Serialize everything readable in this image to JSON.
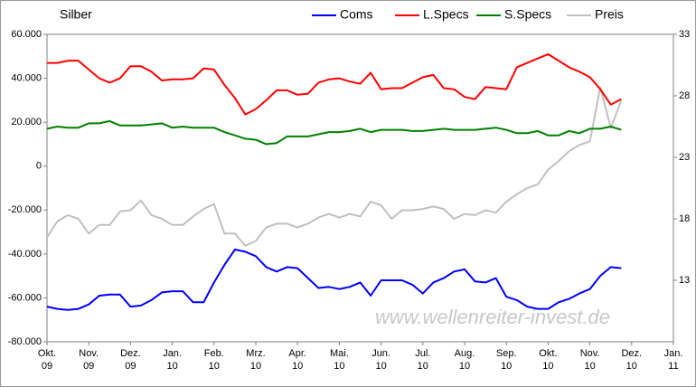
{
  "chart_data": {
    "type": "line",
    "title": "Silber",
    "annotation": "www.wellenreiter-invest.de",
    "x": [
      0,
      0.25,
      0.5,
      0.75,
      1,
      1.25,
      1.5,
      1.75,
      2,
      2.25,
      2.5,
      2.75,
      3,
      3.25,
      3.5,
      3.75,
      4,
      4.25,
      4.5,
      4.75,
      5,
      5.25,
      5.5,
      5.75,
      6,
      6.25,
      6.5,
      6.75,
      7,
      7.25,
      7.5,
      7.75,
      8,
      8.25,
      8.5,
      8.75,
      9,
      9.25,
      9.5,
      9.75,
      10,
      10.25,
      10.5,
      10.75,
      11,
      11.25,
      11.5,
      11.75,
      12,
      12.25,
      12.5,
      12.75,
      13,
      13.25,
      13.5,
      13.75
    ],
    "xlim": [
      0,
      15
    ],
    "xticks": [
      {
        "value": 0,
        "label": "Okt.\n09"
      },
      {
        "value": 1,
        "label": "Nov.\n09"
      },
      {
        "value": 2,
        "label": "Dez.\n09"
      },
      {
        "value": 3,
        "label": "Jan.\n10"
      },
      {
        "value": 4,
        "label": "Feb.\n10"
      },
      {
        "value": 5,
        "label": "Mrz.\n10"
      },
      {
        "value": 6,
        "label": "Apr.\n10"
      },
      {
        "value": 7,
        "label": "Mai.\n10"
      },
      {
        "value": 8,
        "label": "Jun.\n10"
      },
      {
        "value": 9,
        "label": "Jul.\n10"
      },
      {
        "value": 10,
        "label": "Aug.\n10"
      },
      {
        "value": 11,
        "label": "Sep.\n10"
      },
      {
        "value": 12,
        "label": "Okt.\n10"
      },
      {
        "value": 13,
        "label": "Nov.\n10"
      },
      {
        "value": 14,
        "label": "Dez.\n10"
      },
      {
        "value": 15,
        "label": "Jan.\n11"
      }
    ],
    "ylim": [
      -80000,
      60000
    ],
    "yticks": [
      {
        "value": -80000,
        "label": "-80.000"
      },
      {
        "value": -60000,
        "label": "-60.000"
      },
      {
        "value": -40000,
        "label": "-40.000"
      },
      {
        "value": -20000,
        "label": "-20.000"
      },
      0,
      {
        "value": 20000,
        "label": "20.000"
      },
      {
        "value": 40000,
        "label": "40.000"
      },
      {
        "value": 60000,
        "label": "60.000"
      }
    ],
    "y2lim": [
      8,
      33
    ],
    "y2ticks": [
      13,
      18,
      23,
      28,
      33
    ],
    "grid": false,
    "legend": "top",
    "series": [
      {
        "name": "Coms",
        "color": "#0000ff",
        "values": [
          -64000,
          -65000,
          -65500,
          -65000,
          -63000,
          -59000,
          -58500,
          -58500,
          -64000,
          -63500,
          -61000,
          -57500,
          -57000,
          -57000,
          -62000,
          -62000,
          -53000,
          -45000,
          -38000,
          -39000,
          -41000,
          -46000,
          -48000,
          -46000,
          -46500,
          -51000,
          -55500,
          -55000,
          -56000,
          -55000,
          -53000,
          -59000,
          -52000,
          -52000,
          -52000,
          -54000,
          -58000,
          -53000,
          -51000,
          -48000,
          -47000,
          -52500,
          -53000,
          -51000,
          -59500,
          -61000,
          -64000,
          -65000,
          -65000,
          -62000,
          -60500,
          -58000,
          -56000,
          -50000,
          -46000,
          -46500
        ]
      },
      {
        "name": "L.Specs",
        "color": "#ff0000",
        "values": [
          47000,
          47000,
          48000,
          48000,
          44000,
          40000,
          38000,
          40000,
          45500,
          45500,
          43000,
          39000,
          39500,
          39500,
          40000,
          44500,
          44000,
          37000,
          31000,
          23500,
          26000,
          30000,
          34500,
          34500,
          32500,
          33000,
          38000,
          39500,
          40000,
          38500,
          37500,
          42500,
          35000,
          35500,
          35500,
          38000,
          40500,
          41500,
          35500,
          35000,
          31500,
          30500,
          36000,
          35500,
          35000,
          45000,
          47000,
          49000,
          51000,
          48000,
          45000,
          43000,
          40500,
          35000,
          28000,
          30500
        ]
      },
      {
        "name": "S.Specs",
        "color": "#008000",
        "values": [
          17000,
          18000,
          17500,
          17500,
          19500,
          19500,
          20500,
          18500,
          18500,
          18500,
          19000,
          19500,
          17500,
          18000,
          17500,
          17500,
          17500,
          15500,
          14000,
          12500,
          12000,
          10000,
          10500,
          13500,
          13500,
          13500,
          14500,
          15500,
          15500,
          16000,
          17000,
          15500,
          16500,
          16500,
          16500,
          16000,
          16000,
          16500,
          17000,
          16500,
          16500,
          16500,
          17000,
          17500,
          16500,
          15000,
          15000,
          16000,
          14000,
          14000,
          16000,
          15000,
          17000,
          17000,
          18000,
          16500
        ]
      },
      {
        "name": "Preis",
        "color": "#c0c0c0",
        "axis": "y2",
        "values": [
          16.5,
          17.8,
          18.3,
          18,
          16.8,
          17.5,
          17.5,
          18.6,
          18.7,
          19.5,
          18.3,
          18,
          17.5,
          17.5,
          18.2,
          18.8,
          19.2,
          16.8,
          16.8,
          15.8,
          16.2,
          17.3,
          17.6,
          17.6,
          17.3,
          17.6,
          18.1,
          18.4,
          18.1,
          18.4,
          18.2,
          19.4,
          19.1,
          18,
          18.7,
          18.7,
          18.8,
          19,
          18.8,
          18,
          18.4,
          18.3,
          18.7,
          18.5,
          19.4,
          20,
          20.5,
          20.8,
          22,
          22.7,
          23.5,
          24,
          24.3,
          28.7,
          25.4,
          27.6
        ]
      }
    ]
  }
}
